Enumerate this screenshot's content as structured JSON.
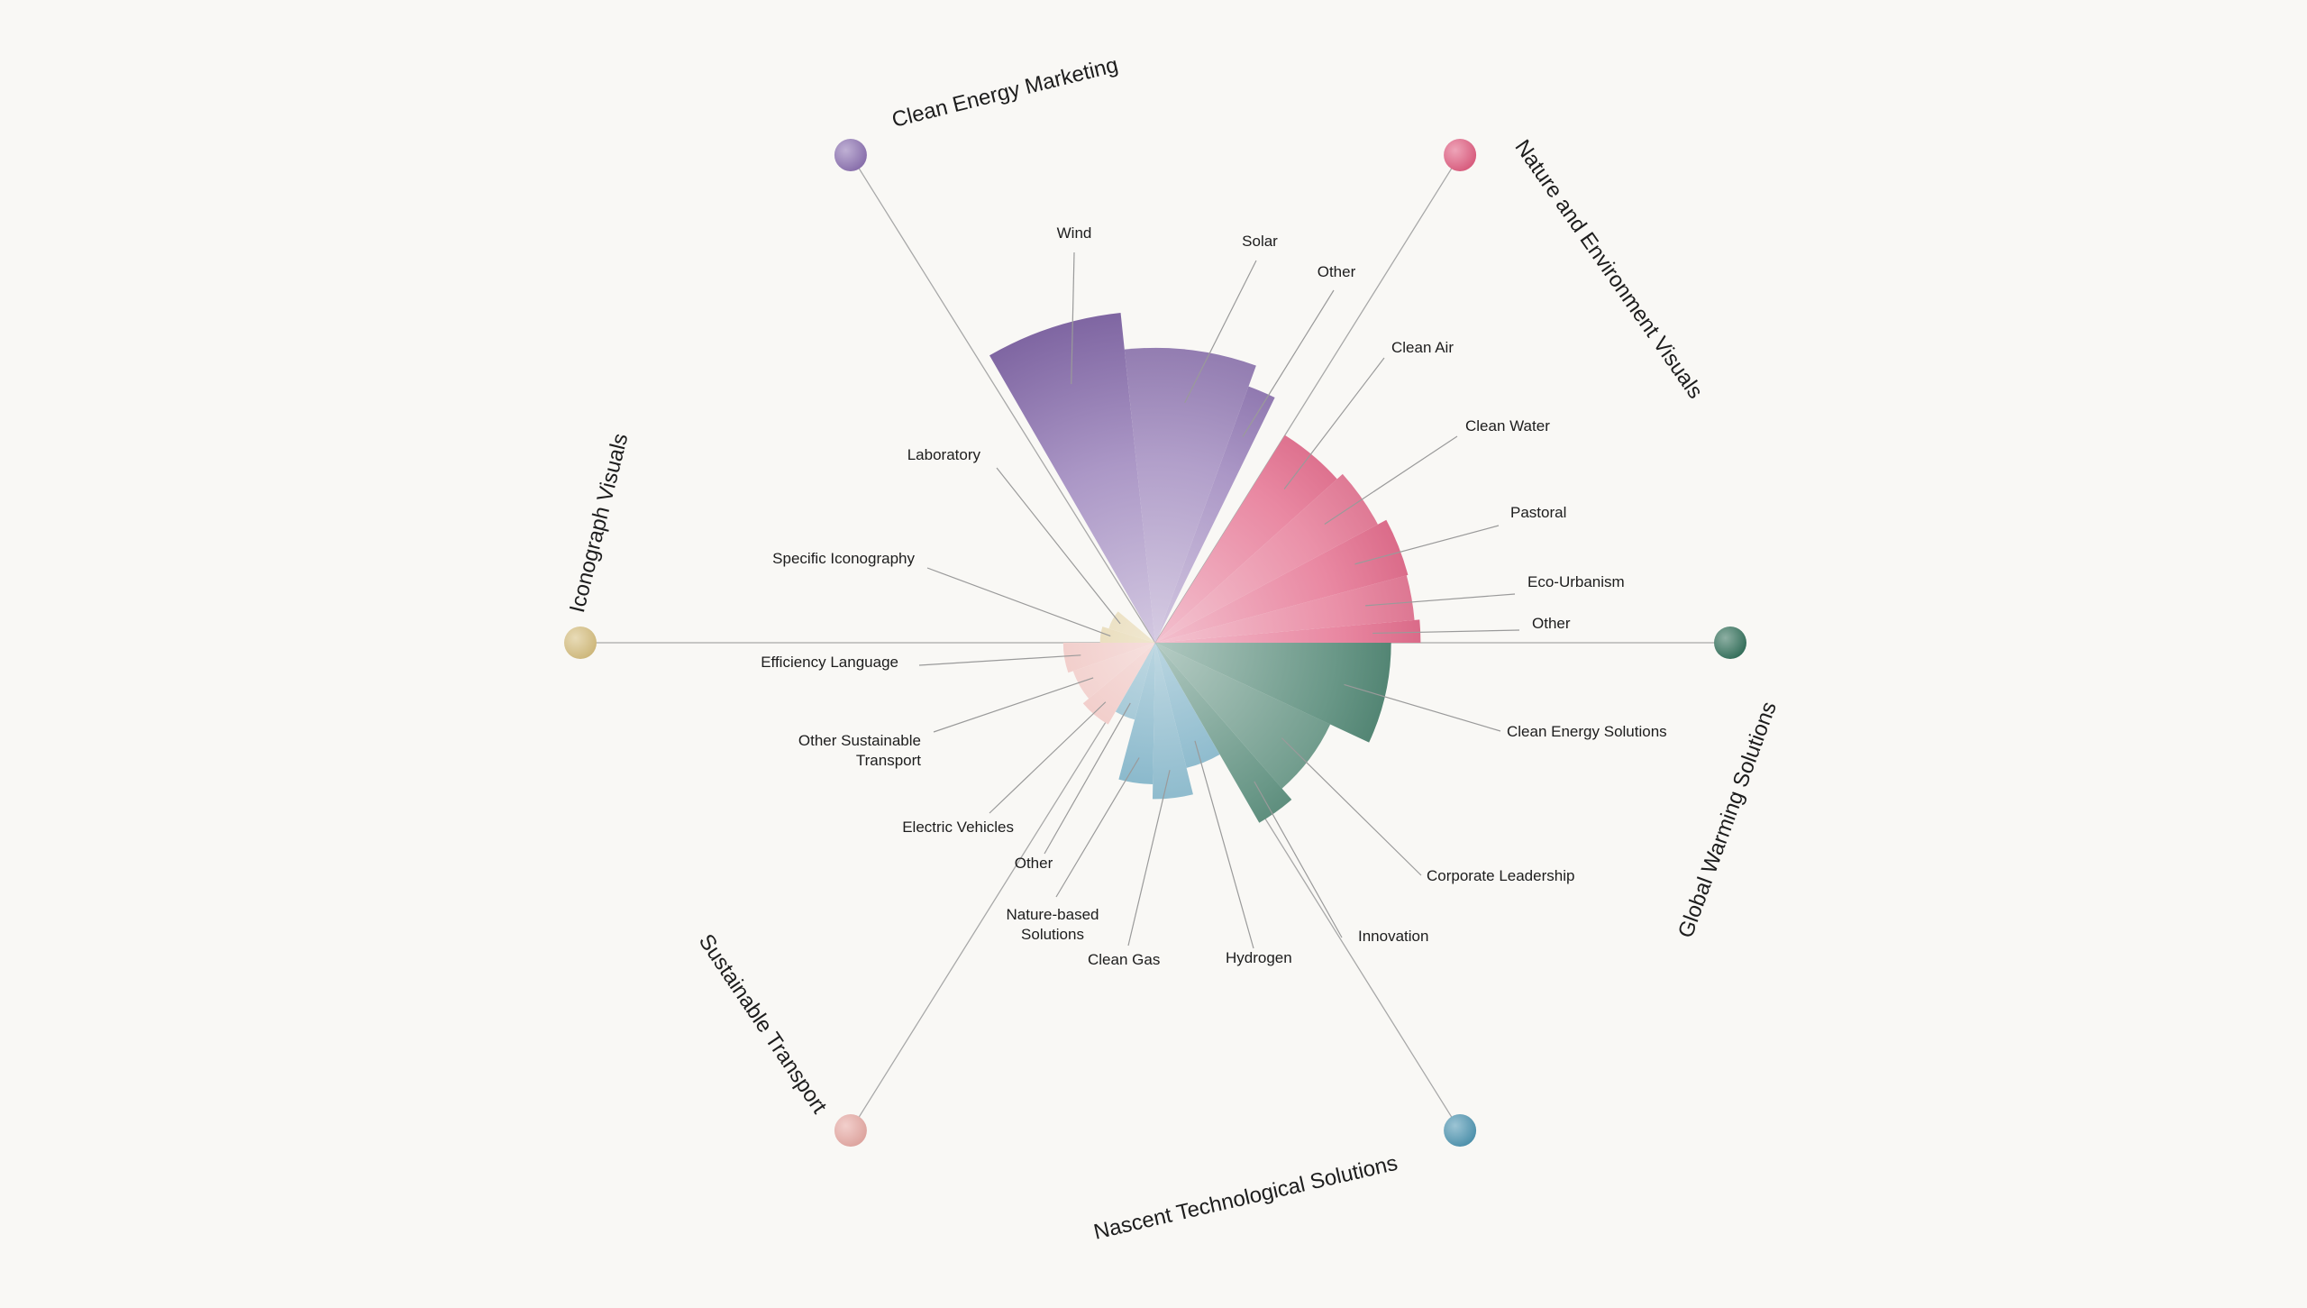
{
  "chart_data": {
    "type": "radial-sunburst",
    "title": "",
    "categories": [
      {
        "name": "Global Warming Solutions",
        "color": "#2f6e58",
        "segments": [
          {
            "label": "Clean Energy Solutions",
            "value": 320
          },
          {
            "label": "Corporate Leadership",
            "value": 262
          },
          {
            "label": "Innovation",
            "value": 282
          }
        ]
      },
      {
        "name": "Nascent Technological Solutions",
        "color": "#4b93b0",
        "segments": [
          {
            "label": "Hydrogen",
            "value": 175
          },
          {
            "label": "Clean Gas",
            "value": 212
          },
          {
            "label": "Nature-based Solutions",
            "value": 192
          },
          {
            "label": "Other",
            "value": 108
          }
        ]
      },
      {
        "name": "Sustainable Transport",
        "color": "#e7a8a2",
        "segments": [
          {
            "label": "Electric Vehicles",
            "value": 128
          },
          {
            "label": "Other Sustainable Transport",
            "value": 118
          },
          {
            "label": "Efficiency Language",
            "value": 125
          }
        ]
      },
      {
        "name": "Iconograph Visuals",
        "color": "#d6bd7c",
        "segments": [
          {
            "label": "Specific Iconography",
            "value": 75
          },
          {
            "label": "Laboratory",
            "value": 66
          }
        ]
      },
      {
        "name": "Clean Energy Marketing",
        "color": "#8a6fb0",
        "segments": [
          {
            "label": "Wind",
            "value": 450
          },
          {
            "label": "Solar",
            "value": 400
          },
          {
            "label": "Other",
            "value": 370
          }
        ]
      },
      {
        "name": "Nature and Environment Visuals",
        "color": "#e05a7e",
        "segments": [
          {
            "label": "Clean Air",
            "value": 332
          },
          {
            "label": "Clean Water",
            "value": 342
          },
          {
            "label": "Pastoral",
            "value": 355
          },
          {
            "label": "Eco-Urbanism",
            "value": 353
          },
          {
            "label": "Other",
            "value": 360
          }
        ]
      }
    ]
  }
}
